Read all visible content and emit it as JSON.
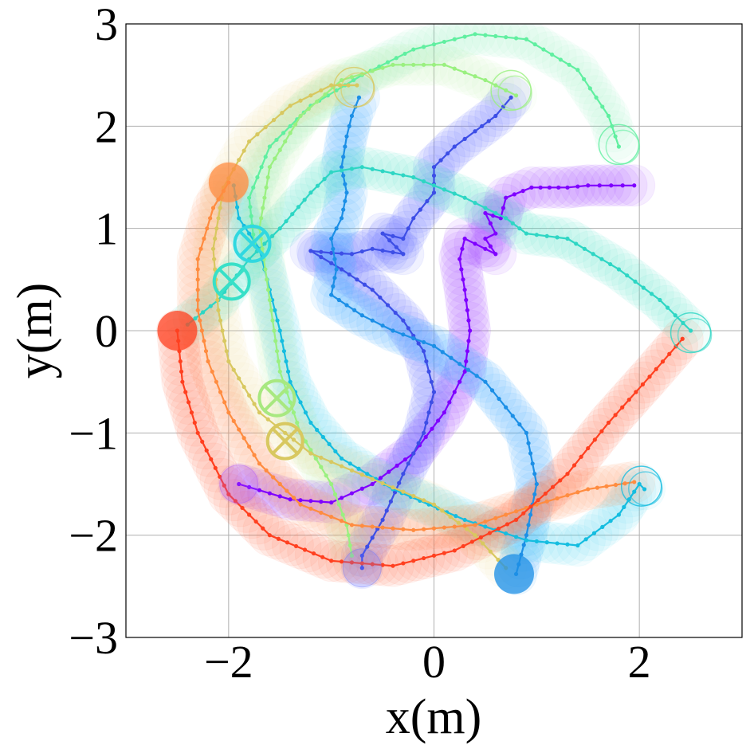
{
  "chart_data": {
    "type": "scatter",
    "title": "",
    "xlabel": "x(m)",
    "ylabel": "y(m)",
    "xlim": [
      -3,
      3
    ],
    "ylim": [
      -3,
      3
    ],
    "grid": true,
    "x_ticks": [
      {
        "value": -2,
        "label": "−2"
      },
      {
        "value": 0,
        "label": "0"
      },
      {
        "value": 2,
        "label": "2"
      }
    ],
    "y_ticks": [
      {
        "value": -3,
        "label": "−3"
      },
      {
        "value": -2,
        "label": "−2"
      },
      {
        "value": -1,
        "label": "−1"
      },
      {
        "value": 0,
        "label": "0"
      },
      {
        "value": 1,
        "label": "1"
      },
      {
        "value": 2,
        "label": "2"
      },
      {
        "value": 3,
        "label": "3"
      }
    ],
    "series": [
      {
        "color": "#7f00ff",
        "trail": "#a94dff",
        "trail_opacity": 0.1,
        "points": [
          [
            1.95,
            1.42
          ],
          [
            1.5,
            1.42
          ],
          [
            1.3,
            1.4
          ],
          [
            0.95,
            1.4
          ],
          [
            0.7,
            1.3
          ],
          [
            0.65,
            1.1
          ],
          [
            0.5,
            1.15
          ],
          [
            0.6,
            0.95
          ],
          [
            0.5,
            0.9
          ],
          [
            0.6,
            0.75
          ],
          [
            0.4,
            0.85
          ],
          [
            0.3,
            0.9
          ],
          [
            0.25,
            0.7
          ],
          [
            0.3,
            0.4
          ],
          [
            0.35,
            0.0
          ],
          [
            0.3,
            -0.4
          ],
          [
            0.1,
            -0.8
          ],
          [
            -0.2,
            -1.2
          ],
          [
            -0.6,
            -1.5
          ],
          [
            -1.0,
            -1.68
          ],
          [
            -1.4,
            -1.65
          ],
          [
            -1.9,
            -1.5
          ]
        ],
        "end": {
          "type": "circle",
          "at": [
            -1.9,
            -1.5
          ]
        }
      },
      {
        "color": "#3d4ee6",
        "trail": "#6a75ff",
        "trail_opacity": 0.1,
        "points": [
          [
            0.75,
            2.28
          ],
          [
            0.6,
            2.1
          ],
          [
            0.4,
            1.95
          ],
          [
            0.2,
            1.8
          ],
          [
            0.0,
            1.6
          ],
          [
            0.0,
            1.35
          ],
          [
            -0.2,
            1.1
          ],
          [
            -0.3,
            0.9
          ],
          [
            -0.5,
            0.95
          ],
          [
            -0.3,
            0.75
          ],
          [
            -0.6,
            0.8
          ],
          [
            -0.8,
            0.75
          ],
          [
            -1.0,
            0.76
          ],
          [
            -1.2,
            0.78
          ],
          [
            -0.9,
            0.6
          ],
          [
            -0.6,
            0.4
          ],
          [
            -0.3,
            0.1
          ],
          [
            -0.1,
            -0.2
          ],
          [
            0.0,
            -0.6
          ],
          [
            -0.1,
            -1.0
          ],
          [
            -0.3,
            -1.4
          ],
          [
            -0.5,
            -1.85
          ],
          [
            -0.7,
            -2.2
          ],
          [
            -0.7,
            -2.32
          ]
        ],
        "end": {
          "type": "circle",
          "at": [
            -0.7,
            -2.32
          ]
        }
      },
      {
        "color": "#1c8fe6",
        "trail": "#4aaeff",
        "trail_opacity": 0.1,
        "points": [
          [
            -0.73,
            2.28
          ],
          [
            -0.8,
            2.1
          ],
          [
            -0.85,
            1.9
          ],
          [
            -0.9,
            1.6
          ],
          [
            -0.85,
            1.35
          ],
          [
            -0.9,
            1.1
          ],
          [
            -1.0,
            0.9
          ],
          [
            -0.95,
            0.6
          ],
          [
            -1.0,
            0.35
          ],
          [
            -0.7,
            0.15
          ],
          [
            -0.4,
            0.0
          ],
          [
            0.0,
            -0.15
          ],
          [
            0.5,
            -0.5
          ],
          [
            0.9,
            -1.0
          ],
          [
            1.0,
            -1.5
          ],
          [
            0.9,
            -2.0
          ],
          [
            0.8,
            -2.38
          ]
        ],
        "end": {
          "type": "filled",
          "at": [
            0.78,
            -2.38
          ]
        }
      },
      {
        "color": "#15bde0",
        "trail": "#40d8f0",
        "trail_opacity": 0.07,
        "points": [
          [
            -1.95,
            1.42
          ],
          [
            -1.9,
            1.1
          ],
          [
            -1.7,
            0.8
          ],
          [
            -1.6,
            0.4
          ],
          [
            -1.5,
            0.0
          ],
          [
            -1.4,
            -0.5
          ],
          [
            -1.2,
            -0.9
          ],
          [
            -0.9,
            -1.25
          ],
          [
            -0.4,
            -1.55
          ],
          [
            0.3,
            -1.85
          ],
          [
            0.9,
            -2.05
          ],
          [
            1.4,
            -2.1
          ],
          [
            1.8,
            -1.8
          ],
          [
            2.0,
            -1.5
          ],
          [
            2.05,
            -1.55
          ]
        ],
        "end": {
          "type": "ring",
          "at": [
            2.02,
            -1.52
          ]
        }
      },
      {
        "color": "#2ed6c4",
        "trail": "#45e0c0",
        "trail_opacity": 0.07,
        "points": [
          [
            -2.4,
            0.06
          ],
          [
            -2.1,
            0.3
          ],
          [
            -1.8,
            0.7
          ],
          [
            -1.5,
            1.0
          ],
          [
            -1.2,
            1.35
          ],
          [
            -1.0,
            1.55
          ],
          [
            -0.7,
            1.6
          ],
          [
            -0.2,
            1.5
          ],
          [
            0.3,
            1.3
          ],
          [
            0.7,
            1.1
          ],
          [
            0.9,
            0.95
          ],
          [
            1.3,
            0.9
          ],
          [
            1.8,
            0.6
          ],
          [
            2.2,
            0.3
          ],
          [
            2.5,
            0.0
          ]
        ],
        "end": {
          "type": "ring",
          "at": [
            2.5,
            -0.02
          ]
        }
      },
      {
        "color": "#60efa0",
        "trail": "#7ef0b0",
        "trail_opacity": 0.05,
        "points": [
          [
            -1.75,
            0.85
          ],
          [
            -1.8,
            1.3
          ],
          [
            -1.6,
            1.8
          ],
          [
            -1.2,
            2.2
          ],
          [
            -0.7,
            2.5
          ],
          [
            -0.2,
            2.75
          ],
          [
            0.4,
            2.9
          ],
          [
            0.9,
            2.85
          ],
          [
            1.4,
            2.55
          ],
          [
            1.7,
            2.1
          ],
          [
            1.8,
            1.8
          ]
        ],
        "end": {
          "type": "ring",
          "at": [
            1.8,
            1.82
          ]
        }
      },
      {
        "color": "#9af080",
        "trail": "#b6f5a0",
        "trail_opacity": 0.05,
        "points": [
          [
            -0.8,
            -2.2
          ],
          [
            -0.85,
            -1.9
          ],
          [
            -1.0,
            -1.5
          ],
          [
            -1.3,
            -1.0
          ],
          [
            -1.5,
            -0.4
          ],
          [
            -1.6,
            0.3
          ],
          [
            -1.7,
            1.0
          ],
          [
            -1.6,
            1.6
          ],
          [
            -1.3,
            2.1
          ],
          [
            -0.9,
            2.45
          ],
          [
            -0.4,
            2.6
          ],
          [
            0.1,
            2.6
          ],
          [
            0.5,
            2.45
          ],
          [
            0.8,
            2.3
          ]
        ],
        "end": {
          "type": "ring",
          "at": [
            0.75,
            2.35
          ]
        }
      },
      {
        "color": "#d8c860",
        "trail": "#e6d88a",
        "trail_opacity": 0.05,
        "points": [
          [
            0.7,
            -2.32
          ],
          [
            0.4,
            -2.0
          ],
          [
            0.0,
            -1.7
          ],
          [
            -0.6,
            -1.45
          ],
          [
            -1.2,
            -1.2
          ],
          [
            -1.7,
            -0.8
          ],
          [
            -2.0,
            -0.3
          ],
          [
            -2.1,
            0.2
          ],
          [
            -2.15,
            0.8
          ],
          [
            -2.05,
            1.4
          ],
          [
            -1.8,
            1.85
          ],
          [
            -1.4,
            2.2
          ],
          [
            -1.0,
            2.4
          ],
          [
            -0.75,
            2.4
          ]
        ],
        "end": {
          "type": "ring",
          "at": [
            -0.78,
            2.38
          ]
        }
      },
      {
        "color": "#ff8c40",
        "trail": "#ff9e60",
        "trail_opacity": 0.08,
        "points": [
          [
            1.95,
            -1.48
          ],
          [
            1.5,
            -1.55
          ],
          [
            1.0,
            -1.7
          ],
          [
            0.4,
            -1.9
          ],
          [
            -0.2,
            -1.95
          ],
          [
            -0.8,
            -1.9
          ],
          [
            -1.3,
            -1.7
          ],
          [
            -1.7,
            -1.3
          ],
          [
            -2.0,
            -0.8
          ],
          [
            -2.2,
            -0.3
          ],
          [
            -2.3,
            0.2
          ],
          [
            -2.3,
            0.7
          ],
          [
            -2.15,
            1.2
          ],
          [
            -2.0,
            1.45
          ]
        ],
        "end": {
          "type": "filled",
          "at": [
            -2.0,
            1.45
          ]
        }
      },
      {
        "color": "#ff4020",
        "trail": "#ff6040",
        "trail_opacity": 0.08,
        "points": [
          [
            2.42,
            -0.08
          ],
          [
            2.1,
            -0.45
          ],
          [
            1.7,
            -0.9
          ],
          [
            1.3,
            -1.4
          ],
          [
            0.8,
            -1.85
          ],
          [
            0.2,
            -2.15
          ],
          [
            -0.4,
            -2.3
          ],
          [
            -1.0,
            -2.25
          ],
          [
            -1.6,
            -2.0
          ],
          [
            -2.0,
            -1.6
          ],
          [
            -2.3,
            -1.0
          ],
          [
            -2.45,
            -0.5
          ],
          [
            -2.5,
            0.0
          ]
        ],
        "end": {
          "type": "filled",
          "at": [
            -2.5,
            0.0
          ]
        }
      }
    ],
    "goals": [
      {
        "at": [
          -1.77,
          0.85
        ],
        "color": "#30d8e0"
      },
      {
        "at": [
          -1.97,
          0.48
        ],
        "color": "#38e0c8"
      },
      {
        "at": [
          -1.53,
          -0.66
        ],
        "color": "#a8e880"
      },
      {
        "at": [
          -1.45,
          -1.08
        ],
        "color": "#d8c860"
      }
    ]
  }
}
